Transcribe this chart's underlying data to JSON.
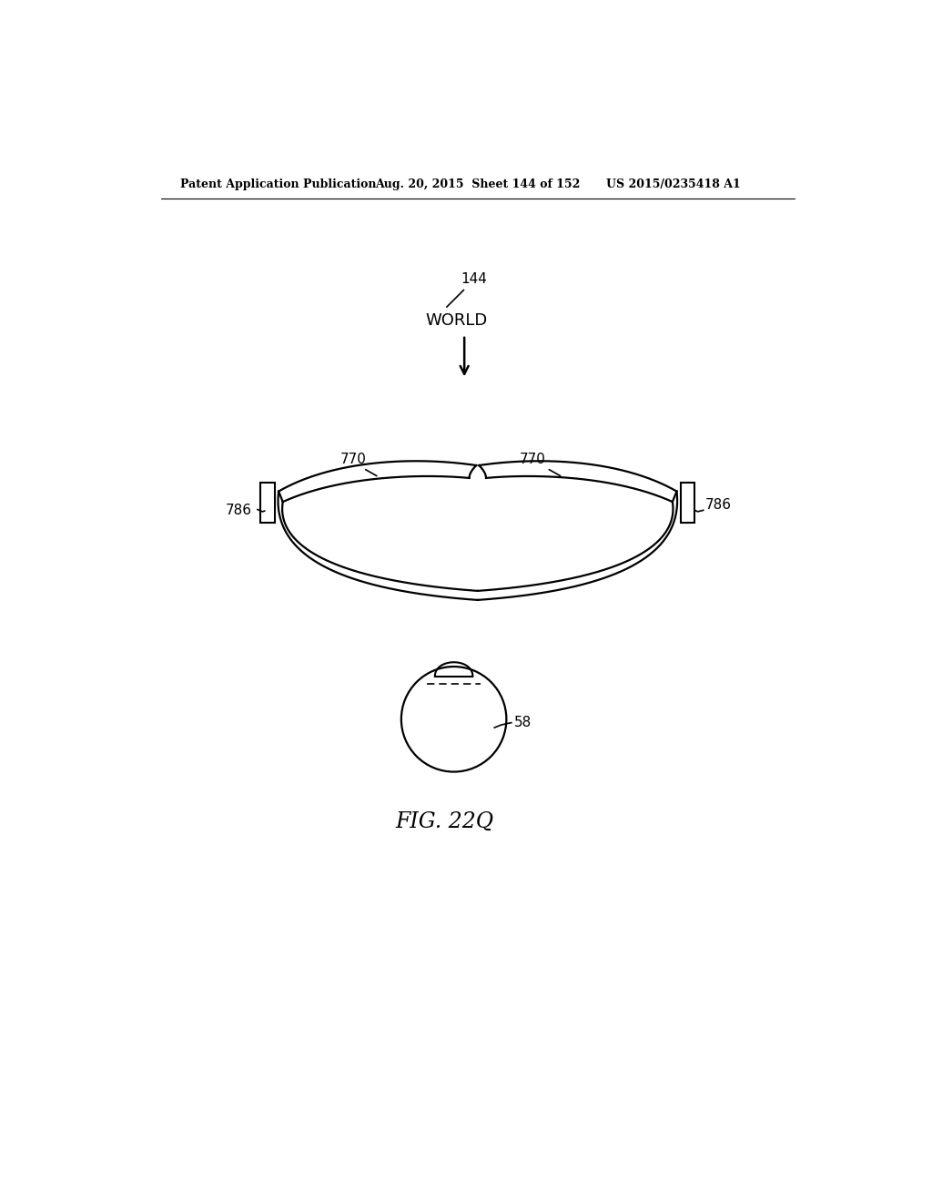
{
  "bg_color": "#ffffff",
  "text_color": "#000000",
  "header_left": "Patent Application Publication",
  "header_mid": "Aug. 20, 2015  Sheet 144 of 152",
  "header_right": "US 2015/0235418 A1",
  "fig_label": "FIG. 22Q",
  "label_144": "144",
  "label_world": "WORLD",
  "label_770_left": "770",
  "label_770_right": "770",
  "label_786_left": "786",
  "label_786_right": "786",
  "label_58": "58"
}
